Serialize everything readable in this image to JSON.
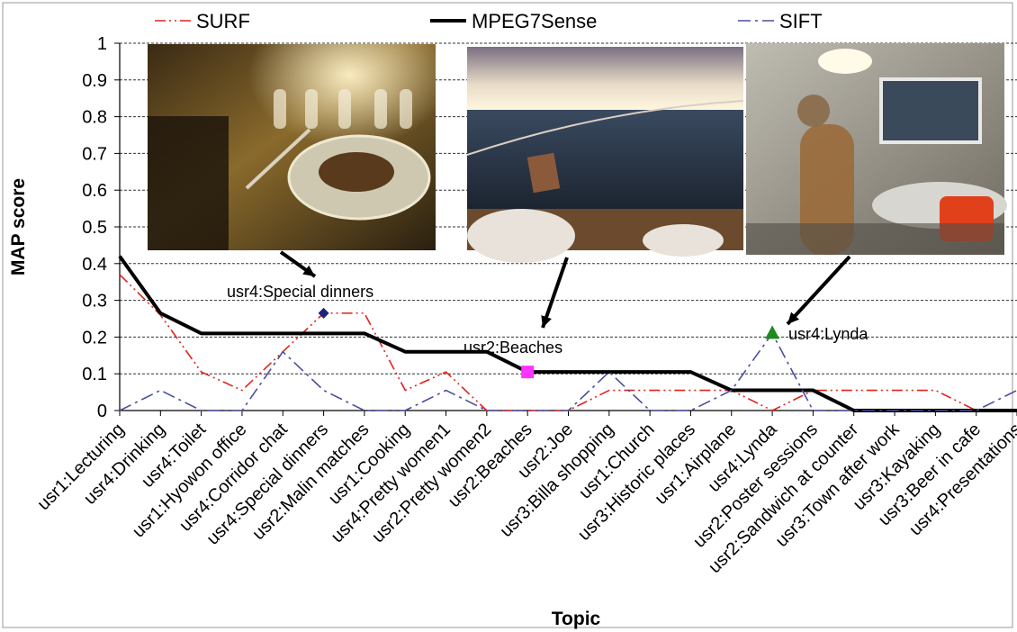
{
  "chart_data": {
    "type": "line",
    "xlabel": "Topic",
    "ylabel": "MAP score",
    "ylim": [
      0,
      1
    ],
    "yticks": [
      "0",
      "0.1",
      "0.2",
      "0.3",
      "0.4",
      "0.5",
      "0.6",
      "0.7",
      "0.8",
      "0.9",
      "1"
    ],
    "grid": true,
    "legend_position": "top",
    "categories": [
      "usr1:Lecturing",
      "usr4:Drinking",
      "usr4:Toilet",
      "usr1:Hyowon office",
      "usr4:Corridor chat",
      "usr4:Special dinners",
      "usr2:Malin matches",
      "usr1:Cooking",
      "usr4:Pretty women1",
      "usr2:Pretty women2",
      "usr2:Beaches",
      "usr2:Joe",
      "usr3:Billa shopping",
      "usr1:Church",
      "usr3:Historic places",
      "usr1:Airplane",
      "usr4:Lynda",
      "usr2:Poster sessions",
      "usr2:Sandwich at counter",
      "usr3:Town after work",
      "usr3:Kayaking",
      "usr3:Beer in cafe",
      "usr4:Presentations"
    ],
    "series": [
      {
        "name": "SURF",
        "color": "#e0231b",
        "style": "dash-dot-dot",
        "values": [
          0.37,
          0.26,
          0.105,
          0.055,
          0.16,
          0.265,
          0.265,
          0.055,
          0.105,
          0,
          0,
          0,
          0.055,
          0.055,
          0.055,
          0.055,
          0,
          0.055,
          0.055,
          0.055,
          0.055,
          0,
          0
        ]
      },
      {
        "name": "MPEG7Sense",
        "color": "#000000",
        "style": "solid",
        "values": [
          0.42,
          0.265,
          0.21,
          0.21,
          0.21,
          0.21,
          0.21,
          0.16,
          0.16,
          0.16,
          0.105,
          0.105,
          0.105,
          0.105,
          0.105,
          0.055,
          0.055,
          0.055,
          0,
          0,
          0,
          0,
          0
        ]
      },
      {
        "name": "SIFT",
        "color": "#4b4f9c",
        "style": "dash-dot",
        "values": [
          0,
          0.055,
          0,
          0,
          0.16,
          0.055,
          0,
          0,
          0.055,
          0,
          0,
          0,
          0.105,
          0,
          0,
          0.055,
          0.21,
          0,
          0,
          0,
          0,
          0,
          0.055
        ]
      }
    ],
    "annotations": [
      {
        "text": "usr4:Special dinners",
        "category_index": 5,
        "value": 0.265,
        "marker": "diamond",
        "marker_color": "#1a237e"
      },
      {
        "text": "usr2:Beaches",
        "category_index": 10,
        "value": 0.105,
        "marker": "square",
        "marker_color": "#ff33ff"
      },
      {
        "text": "usr4:Lynda",
        "category_index": 16,
        "value": 0.21,
        "marker": "triangle",
        "marker_color": "#1f8a1f"
      }
    ],
    "images": [
      {
        "name": "dinner-photo"
      },
      {
        "name": "beach-photo"
      },
      {
        "name": "office-photo"
      }
    ]
  }
}
